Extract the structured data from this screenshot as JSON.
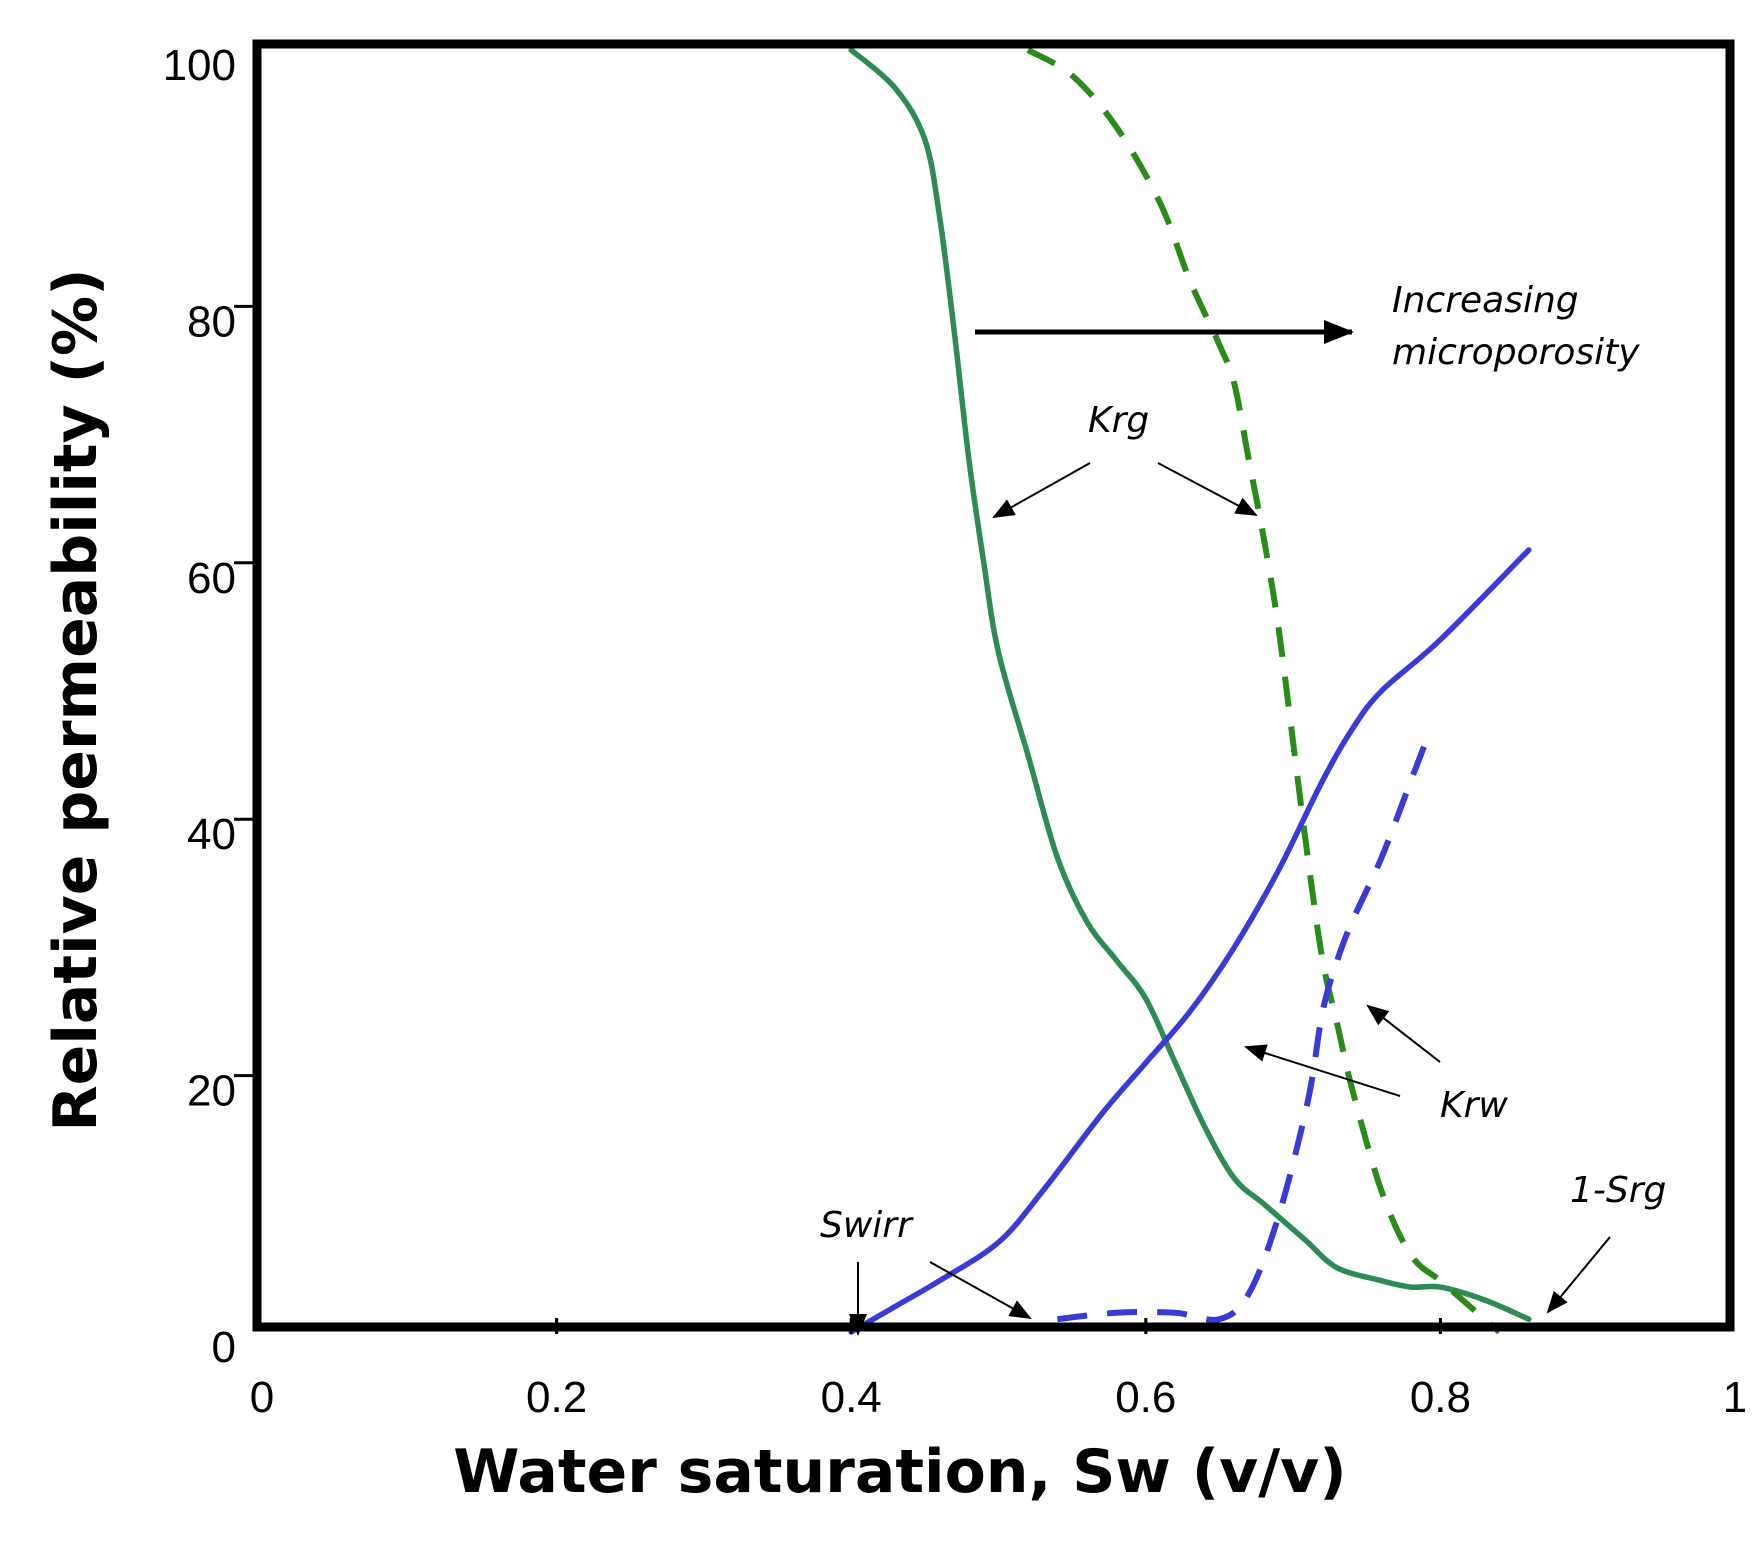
{
  "chart_data": {
    "type": "line",
    "xlabel": "Water saturation, Sw (v/v)",
    "ylabel": "Relative permeability (%)",
    "xlim": [
      0,
      1
    ],
    "ylim": [
      0,
      100
    ],
    "xticks": [
      "0",
      "0.2",
      "0.4",
      "0.6",
      "0.8",
      "1"
    ],
    "yticks": [
      "0",
      "20",
      "40",
      "60",
      "80",
      "100"
    ],
    "y_minor_ticks": [
      20,
      40,
      60,
      80
    ],
    "grid": false,
    "colors": {
      "krg": "#2e8b57",
      "krg_dashed": "#2a8a1a",
      "krw": "#3a3ad6",
      "arrow": "#000000"
    },
    "series": [
      {
        "name": "Krg",
        "style": "solid",
        "x": [
          0.4,
          0.43,
          0.45,
          0.46,
          0.47,
          0.48,
          0.49,
          0.5,
          0.52,
          0.54,
          0.56,
          0.58,
          0.6,
          0.62,
          0.64,
          0.66,
          0.68,
          0.7,
          0.71,
          0.73,
          0.76,
          0.78,
          0.8,
          0.83,
          0.86
        ],
        "y": [
          100,
          97,
          93,
          87,
          78,
          68,
          60,
          53,
          45,
          37,
          32,
          29,
          26,
          21,
          16,
          12,
          10,
          8,
          7,
          5,
          4,
          3.5,
          3.5,
          2.5,
          1
        ]
      },
      {
        "name": "Krg",
        "style": "dashed",
        "x": [
          0.52,
          0.55,
          0.58,
          0.61,
          0.63,
          0.65,
          0.66,
          0.67,
          0.68,
          0.69,
          0.7,
          0.71,
          0.72,
          0.73,
          0.74,
          0.76,
          0.78,
          0.8,
          0.82,
          0.84
        ],
        "y": [
          100,
          98,
          94,
          88,
          82,
          77,
          74,
          68,
          62,
          55,
          46,
          37,
          29,
          24,
          19,
          11,
          6,
          4,
          2,
          0
        ]
      },
      {
        "name": "Krw",
        "style": "solid",
        "x": [
          0.4,
          0.43,
          0.46,
          0.5,
          0.53,
          0.57,
          0.6,
          0.63,
          0.66,
          0.69,
          0.72,
          0.74,
          0.76,
          0.8,
          0.86
        ],
        "y": [
          0,
          2,
          4,
          7,
          11,
          17,
          21,
          25,
          30,
          36,
          43,
          47,
          50,
          54,
          61
        ]
      },
      {
        "name": "Krw",
        "style": "dashed",
        "x": [
          0.54,
          0.58,
          0.62,
          0.65,
          0.67,
          0.69,
          0.71,
          0.72,
          0.73,
          0.74,
          0.76,
          0.78,
          0.79
        ],
        "y": [
          1,
          1.5,
          1.5,
          1,
          3,
          9,
          18,
          25,
          29,
          32,
          37,
          43,
          46
        ]
      }
    ],
    "annotations": {
      "krg": "Krg",
      "krw": "Krw",
      "increasing_1": "Increasing",
      "increasing_2": "microporosity",
      "swirr": "Swirr",
      "srg": "1-Srg"
    }
  }
}
